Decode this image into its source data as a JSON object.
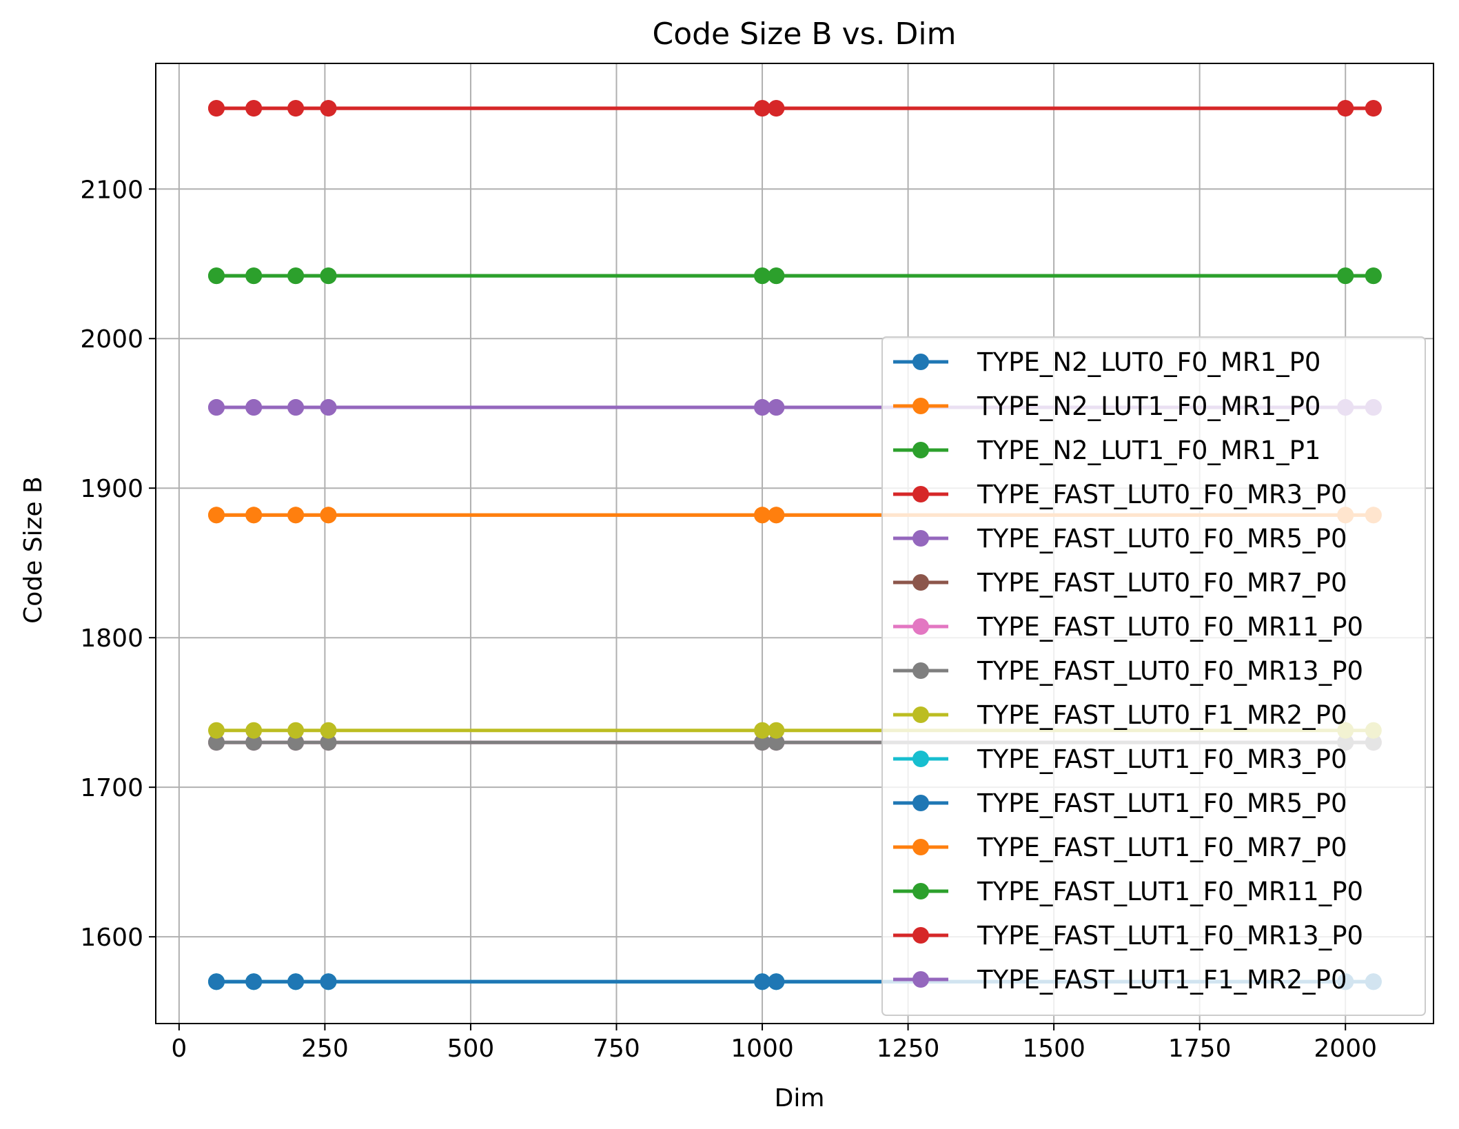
{
  "chart_data": {
    "type": "line",
    "title": "Code Size B vs. Dim",
    "xlabel": "Dim",
    "ylabel": "Code Size B",
    "xlim": [
      -40,
      2151
    ],
    "ylim": [
      1542,
      2184
    ],
    "xticks": [
      0,
      250,
      500,
      750,
      1000,
      1250,
      1500,
      1750,
      2000
    ],
    "xtick_labels": [
      "0",
      "250",
      "500",
      "750",
      "1000",
      "1250",
      "1500",
      "1750",
      "2000"
    ],
    "yticks": [
      1600,
      1700,
      1800,
      1900,
      2000,
      2100
    ],
    "ytick_labels": [
      "1600",
      "1700",
      "1800",
      "1900",
      "2000",
      "2100"
    ],
    "grid": true,
    "legend_position": "lower-right",
    "x": [
      64,
      128,
      200,
      256,
      1000,
      1024,
      2000,
      2048
    ],
    "series": [
      {
        "name": "TYPE_N2_LUT0_F0_MR1_P0",
        "color": "#1f77b4",
        "values": [
          1570,
          1570,
          1570,
          1570,
          1570,
          1570,
          1570,
          1570
        ]
      },
      {
        "name": "TYPE_N2_LUT1_F0_MR1_P0",
        "color": "#ff7f0e",
        "values": [
          1882,
          1882,
          1882,
          1882,
          1882,
          1882,
          1882,
          1882
        ]
      },
      {
        "name": "TYPE_N2_LUT1_F0_MR1_P1",
        "color": "#2ca02c",
        "values": [
          2042,
          2042,
          2042,
          2042,
          2042,
          2042,
          2042,
          2042
        ]
      },
      {
        "name": "TYPE_FAST_LUT0_F0_MR3_P0",
        "color": "#d62728",
        "values": [
          2154,
          2154,
          2154,
          2154,
          2154,
          2154,
          2154,
          2154
        ]
      },
      {
        "name": "TYPE_FAST_LUT0_F0_MR5_P0",
        "color": "#9467bd",
        "values": [
          1954,
          1954,
          1954,
          1954,
          1954,
          1954,
          1954,
          1954
        ]
      },
      {
        "name": "TYPE_FAST_LUT0_F0_MR7_P0",
        "color": "#8c564b",
        "values": [
          1730,
          1730,
          1730,
          1730,
          1730,
          1730,
          1730,
          1730
        ]
      },
      {
        "name": "TYPE_FAST_LUT0_F0_MR11_P0",
        "color": "#e377c2",
        "values": [
          1730,
          1730,
          1730,
          1730,
          1730,
          1730,
          1730,
          1730
        ]
      },
      {
        "name": "TYPE_FAST_LUT0_F0_MR13_P0",
        "color": "#7f7f7f",
        "values": [
          1730,
          1730,
          1730,
          1730,
          1730,
          1730,
          1730,
          1730
        ]
      },
      {
        "name": "TYPE_FAST_LUT0_F1_MR2_P0",
        "color": "#bcbd22",
        "values": [
          1738,
          1738,
          1738,
          1738,
          1738,
          1738,
          1738,
          1738
        ]
      },
      {
        "name": "TYPE_FAST_LUT1_F0_MR3_P0",
        "color": "#17becf",
        "values": [
          1570,
          1570,
          1570,
          1570,
          1570,
          1570,
          1570,
          1570
        ]
      },
      {
        "name": "TYPE_FAST_LUT1_F0_MR5_P0",
        "color": "#1f77b4",
        "values": [
          1570,
          1570,
          1570,
          1570,
          1570,
          1570,
          1570,
          1570
        ]
      },
      {
        "name": "TYPE_FAST_LUT1_F0_MR7_P0",
        "color": "#ff7f0e",
        "values": [
          1882,
          1882,
          1882,
          1882,
          1882,
          1882,
          1882,
          1882
        ]
      },
      {
        "name": "TYPE_FAST_LUT1_F0_MR11_P0",
        "color": "#2ca02c",
        "values": [
          2042,
          2042,
          2042,
          2042,
          2042,
          2042,
          2042,
          2042
        ]
      },
      {
        "name": "TYPE_FAST_LUT1_F0_MR13_P0",
        "color": "#d62728",
        "values": [
          2154,
          2154,
          2154,
          2154,
          2154,
          2154,
          2154,
          2154
        ]
      },
      {
        "name": "TYPE_FAST_LUT1_F1_MR2_P0",
        "color": "#9467bd",
        "values": [
          1954,
          1954,
          1954,
          1954,
          1954,
          1954,
          1954,
          1954
        ]
      }
    ]
  }
}
